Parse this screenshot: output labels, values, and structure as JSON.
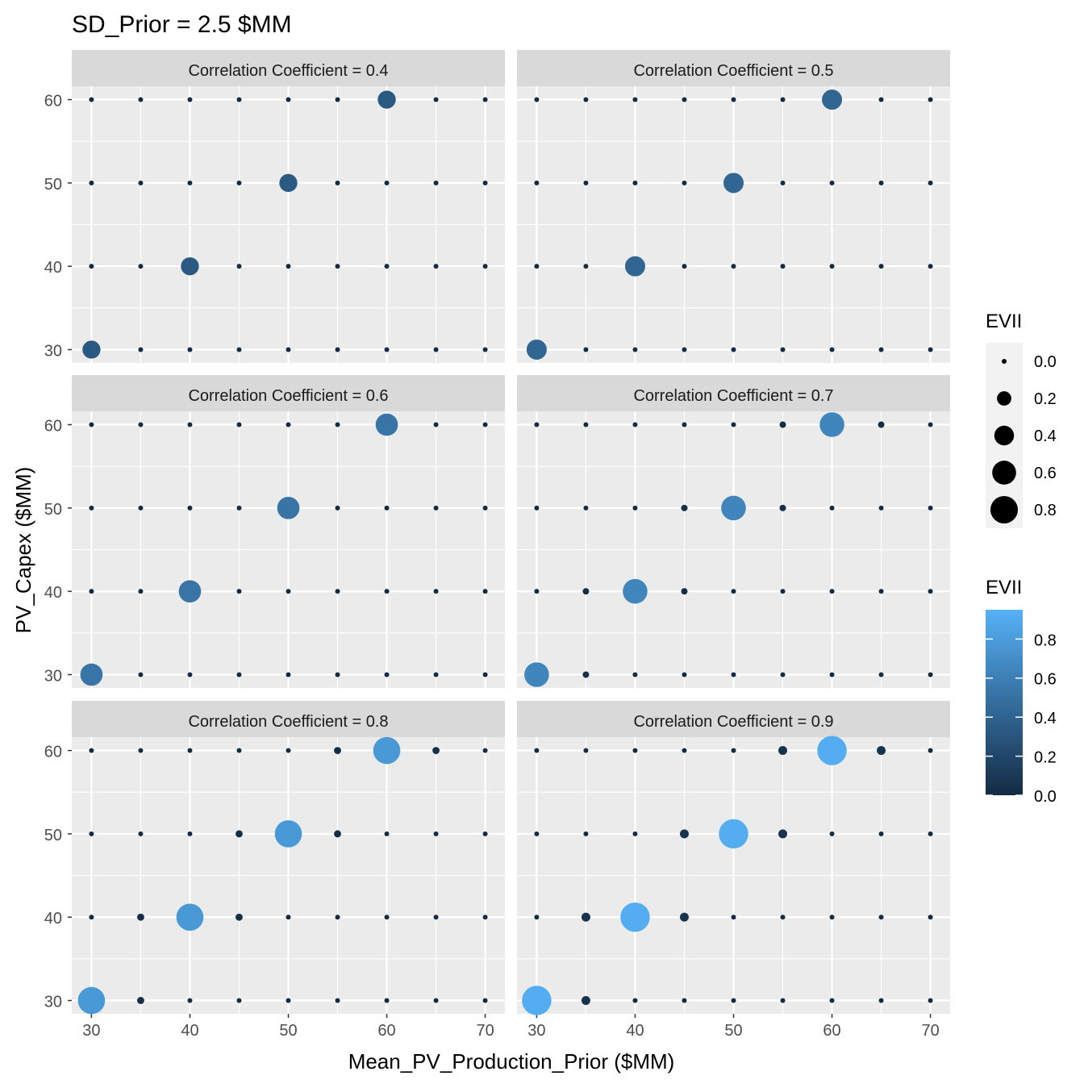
{
  "chart_data": {
    "type": "scatter",
    "title": "SD_Prior = 2.5 $MM",
    "xlabel": "Mean_PV_Production_Prior ($MM)",
    "ylabel": "PV_Capex ($MM)",
    "xlim": [
      28,
      72
    ],
    "ylim": [
      28.4,
      61.6
    ],
    "x_ticks": [
      30,
      40,
      50,
      60,
      70
    ],
    "y_ticks": [
      30,
      40,
      50,
      60
    ],
    "x_grid": [
      30,
      35,
      40,
      45,
      50,
      55,
      60,
      65,
      70
    ],
    "y_grid": [
      30,
      35,
      40,
      45,
      50,
      55,
      60
    ],
    "color_scale": {
      "low": "#132B43",
      "high": "#56B1F7",
      "limits": [
        0,
        0.95
      ]
    },
    "size_scale": {
      "range": [
        0,
        0.95
      ],
      "min_radius_units": 3.0,
      "max_radius_units": 18.5
    },
    "legend_size": {
      "title": "EVII",
      "entries": [
        {
          "value": 0.0,
          "label": "0.0"
        },
        {
          "value": 0.2,
          "label": "0.2"
        },
        {
          "value": 0.4,
          "label": "0.4"
        },
        {
          "value": 0.6,
          "label": "0.6"
        },
        {
          "value": 0.8,
          "label": "0.8"
        }
      ]
    },
    "legend_color": {
      "title": "EVII",
      "ticks": [
        {
          "value": 0.0,
          "label": "0.0"
        },
        {
          "value": 0.2,
          "label": "0.2"
        },
        {
          "value": 0.4,
          "label": "0.4"
        },
        {
          "value": 0.6,
          "label": "0.6"
        },
        {
          "value": 0.8,
          "label": "0.8"
        }
      ]
    },
    "panels": [
      {
        "label": "Correlation Coefficient = 0.4",
        "diag": 0.33,
        "near": 0.0,
        "points": []
      },
      {
        "label": "Correlation Coefficient = 0.5",
        "diag": 0.42,
        "near": 0.0,
        "points": []
      },
      {
        "label": "Correlation Coefficient = 0.6",
        "diag": 0.52,
        "near": 0.0,
        "points": []
      },
      {
        "label": "Correlation Coefficient = 0.7",
        "diag": 0.64,
        "near": 0.02,
        "points": []
      },
      {
        "label": "Correlation Coefficient = 0.8",
        "diag": 0.78,
        "near": 0.03,
        "points": []
      },
      {
        "label": "Correlation Coefficient = 0.9",
        "diag": 0.92,
        "near": 0.06,
        "points": []
      }
    ]
  }
}
